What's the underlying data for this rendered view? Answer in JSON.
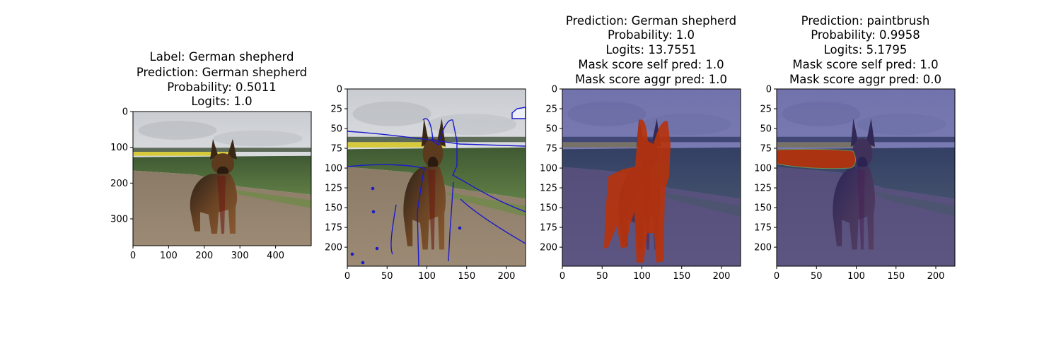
{
  "panels": [
    {
      "title_lines": [
        "Label: German shepherd",
        "Prediction: German shepherd",
        "Probability: 0.5011",
        "Logits: 1.0"
      ],
      "xticks": [
        0,
        100,
        200,
        300,
        400
      ],
      "yticks": [
        0,
        100,
        200,
        300
      ],
      "xlim": [
        0,
        500
      ],
      "ylim": [
        0,
        375
      ],
      "overlay": "none",
      "image": "dog-photo"
    },
    {
      "title_lines": [],
      "xticks": [
        0,
        50,
        100,
        150,
        200
      ],
      "yticks": [
        0,
        25,
        50,
        75,
        100,
        125,
        150,
        175,
        200
      ],
      "xlim": [
        0,
        224
      ],
      "ylim": [
        0,
        224
      ],
      "overlay": "segmentation-contours",
      "overlay_color": "#1a1acc",
      "image": "dog-photo-cropped"
    },
    {
      "title_lines": [
        "Prediction: German shepherd",
        "Probability: 1.0",
        "Logits: 13.7551",
        "Mask score self pred: 1.0",
        "Mask score aggr pred: 1.0"
      ],
      "xticks": [
        0,
        50,
        100,
        150,
        200
      ],
      "yticks": [
        0,
        25,
        50,
        75,
        100,
        125,
        150,
        175,
        200
      ],
      "xlim": [
        0,
        224
      ],
      "ylim": [
        0,
        224
      ],
      "overlay": "mask-dog",
      "overlay_color": "#b8320a",
      "image": "dog-photo-cropped"
    },
    {
      "title_lines": [
        "Prediction: paintbrush",
        "Probability: 0.9958",
        "Logits: 5.1795",
        "Mask score self pred: 1.0",
        "Mask score aggr pred: 0.0"
      ],
      "xticks": [
        0,
        50,
        100,
        150,
        200
      ],
      "yticks": [
        0,
        25,
        50,
        75,
        100,
        125,
        150,
        175,
        200
      ],
      "xlim": [
        0,
        224
      ],
      "ylim": [
        0,
        224
      ],
      "overlay": "mask-field-strip",
      "overlay_color": "#b8320a",
      "image": "dog-photo-cropped"
    }
  ]
}
